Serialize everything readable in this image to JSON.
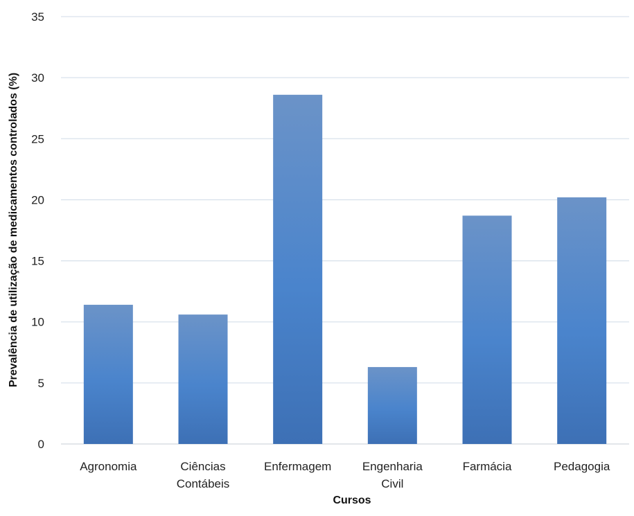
{
  "chart_data": {
    "type": "bar",
    "categories": [
      [
        "Agronomia"
      ],
      [
        "Ciências",
        "Contábeis"
      ],
      [
        "Enfermagem"
      ],
      [
        "Engenharia",
        "Civil"
      ],
      [
        "Farmácia"
      ],
      [
        "Pedagogia"
      ]
    ],
    "values": [
      11.4,
      10.6,
      28.6,
      6.3,
      18.7,
      20.2
    ],
    "title": "",
    "xlabel": "Cursos",
    "ylabel": "Prevalência de utilização de medicamentos controlados (%)",
    "ylim": [
      0,
      35
    ],
    "yticks": [
      "0",
      "5",
      "10",
      "15",
      "20",
      "25",
      "30",
      "35"
    ],
    "grid": true,
    "legend": "none",
    "colors": {
      "bar_top": "#6b93c8",
      "bar_mid": "#4a84cc",
      "bar_bottom": "#3d70b5",
      "grid": "#d9e2ec"
    }
  }
}
